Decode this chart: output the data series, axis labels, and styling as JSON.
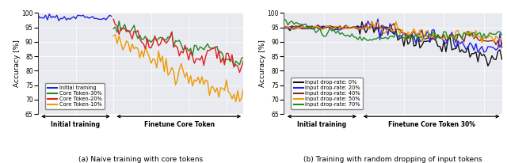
{
  "fig_width": 6.4,
  "fig_height": 2.06,
  "dpi": 100,
  "bg_color": "#e8eaf0",
  "ylim": [
    65,
    100
  ],
  "yticks": [
    65,
    70,
    75,
    80,
    85,
    90,
    95,
    100
  ],
  "subplot1": {
    "ylabel": "Accuracy [%]",
    "xlabel_left": "Initial training",
    "xlabel_right": "Finetune Core Token",
    "caption": "(a) Naive training with core tokens",
    "n_init": 40,
    "n_fine": 70,
    "series": [
      {
        "label": "Initial training",
        "color": "#2222dd",
        "lw": 1.0
      },
      {
        "label": "Core Token-30%",
        "color": "#228822",
        "lw": 1.0
      },
      {
        "label": "Core Token-20%",
        "color": "#dd2222",
        "lw": 1.0
      },
      {
        "label": "Core Token-10%",
        "color": "#ee9900",
        "lw": 1.0
      }
    ]
  },
  "subplot2": {
    "ylabel": "Accuracy [%]",
    "xlabel_left": "Initial training",
    "xlabel_right": "Finetune Core Token 30%",
    "caption": "(b) Training with random dropping of input tokens",
    "n_init": 38,
    "n_fine": 72,
    "series": [
      {
        "label": "Input drop-rate: 0%",
        "color": "#111111",
        "lw": 1.0
      },
      {
        "label": "Input drop-rate: 20%",
        "color": "#2222ee",
        "lw": 1.0
      },
      {
        "label": "Input drop-rate: 40%",
        "color": "#882222",
        "lw": 1.0
      },
      {
        "label": "Input drop-rate: 50%",
        "color": "#ee9900",
        "lw": 1.0
      },
      {
        "label": "Input drop-rate: 70%",
        "color": "#228822",
        "lw": 1.0
      }
    ]
  }
}
